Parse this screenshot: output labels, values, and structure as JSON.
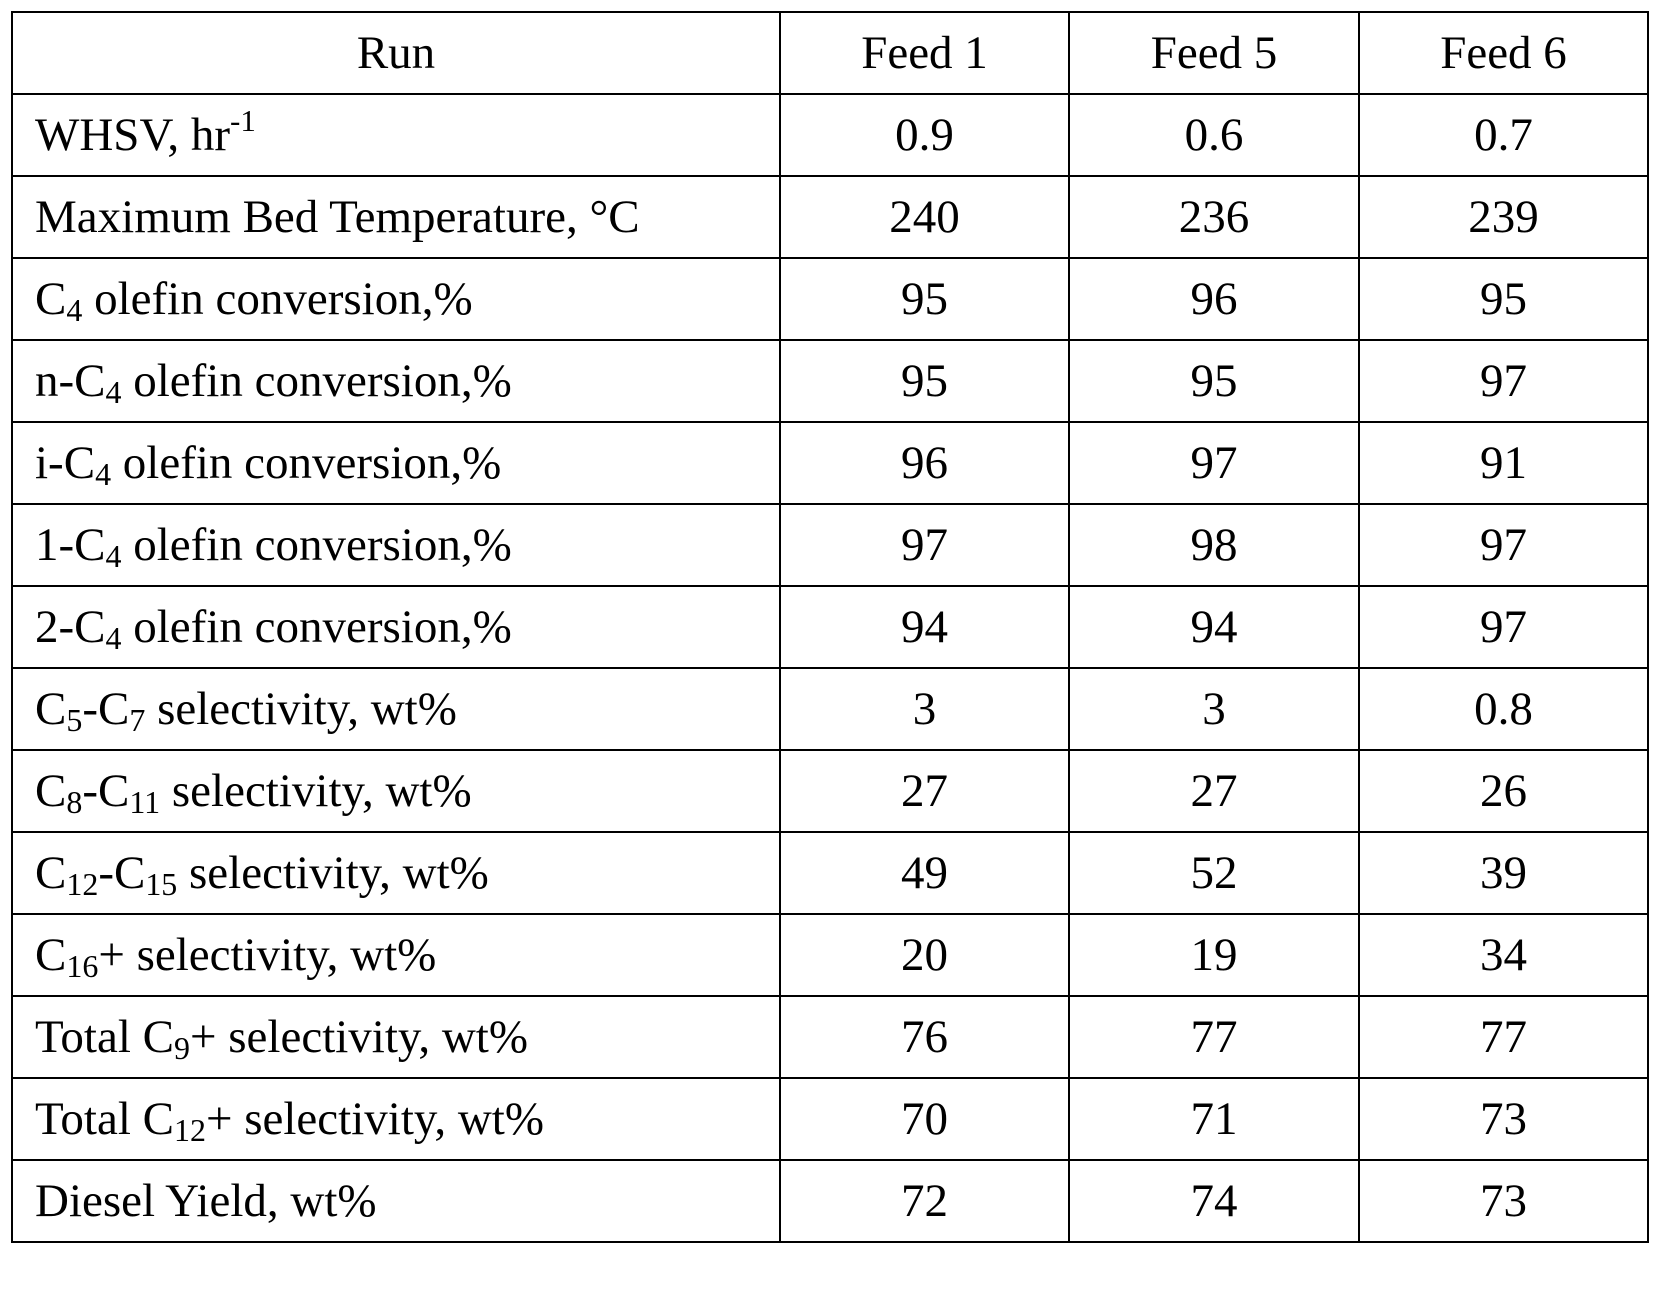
{
  "table": {
    "headers": [
      "Run",
      "Feed 1",
      "Feed 5",
      "Feed 6"
    ],
    "rows": [
      {
        "label": [
          [
            "WHSV, hr",
            ""
          ],
          [
            "-1",
            "sup"
          ]
        ],
        "values": [
          "0.9",
          "0.6",
          "0.7"
        ]
      },
      {
        "label": [
          [
            "Maximum Bed Temperature, °C",
            ""
          ]
        ],
        "values": [
          "240",
          "236",
          "239"
        ]
      },
      {
        "label": [
          [
            "C",
            ""
          ],
          [
            "4",
            "sub"
          ],
          [
            " olefin conversion,%",
            ""
          ]
        ],
        "values": [
          "95",
          "96",
          "95"
        ]
      },
      {
        "label": [
          [
            "n-C",
            ""
          ],
          [
            "4",
            "sub"
          ],
          [
            " olefin conversion,%",
            ""
          ]
        ],
        "values": [
          "95",
          "95",
          "97"
        ]
      },
      {
        "label": [
          [
            "i-C",
            ""
          ],
          [
            "4",
            "sub"
          ],
          [
            " olefin conversion,%",
            ""
          ]
        ],
        "values": [
          "96",
          "97",
          "91"
        ]
      },
      {
        "label": [
          [
            "1-C",
            ""
          ],
          [
            "4",
            "sub"
          ],
          [
            " olefin conversion,%",
            ""
          ]
        ],
        "values": [
          "97",
          "98",
          "97"
        ]
      },
      {
        "label": [
          [
            "2-C",
            ""
          ],
          [
            "4",
            "sub"
          ],
          [
            " olefin conversion,%",
            ""
          ]
        ],
        "values": [
          "94",
          "94",
          "97"
        ]
      },
      {
        "label": [
          [
            "C",
            ""
          ],
          [
            "5",
            "sub"
          ],
          [
            "-C",
            ""
          ],
          [
            "7",
            "sub"
          ],
          [
            " selectivity, wt%",
            ""
          ]
        ],
        "values": [
          "3",
          "3",
          "0.8"
        ]
      },
      {
        "label": [
          [
            "C",
            ""
          ],
          [
            "8",
            "sub"
          ],
          [
            "-C",
            ""
          ],
          [
            "11",
            "sub"
          ],
          [
            " selectivity, wt%",
            ""
          ]
        ],
        "values": [
          "27",
          "27",
          "26"
        ]
      },
      {
        "label": [
          [
            "C",
            ""
          ],
          [
            "12",
            "sub"
          ],
          [
            "-C",
            ""
          ],
          [
            "15",
            "sub"
          ],
          [
            " selectivity, wt%",
            ""
          ]
        ],
        "values": [
          "49",
          "52",
          "39"
        ]
      },
      {
        "label": [
          [
            "C",
            ""
          ],
          [
            "16",
            "sub"
          ],
          [
            "+ selectivity, wt%",
            ""
          ]
        ],
        "values": [
          "20",
          "19",
          "34"
        ]
      },
      {
        "label": [
          [
            "Total C",
            ""
          ],
          [
            "9",
            "sub"
          ],
          [
            "+ selectivity, wt%",
            ""
          ]
        ],
        "values": [
          "76",
          "77",
          "77"
        ]
      },
      {
        "label": [
          [
            "Total C",
            ""
          ],
          [
            "12",
            "sub"
          ],
          [
            "+ selectivity, wt%",
            ""
          ]
        ],
        "values": [
          "70",
          "71",
          "73"
        ]
      },
      {
        "label": [
          [
            "Diesel Yield, wt%",
            ""
          ]
        ],
        "values": [
          "72",
          "74",
          "73"
        ]
      }
    ]
  }
}
